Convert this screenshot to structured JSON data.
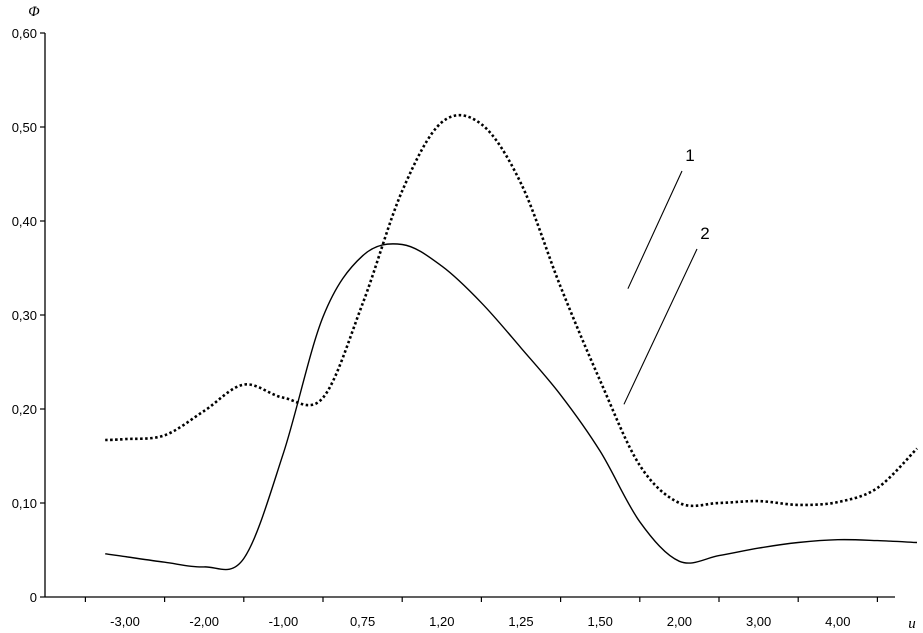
{
  "chart_data": {
    "type": "line",
    "title": "",
    "ylabel": "Φ",
    "xlabel": "u",
    "ylim": [
      0,
      0.6
    ],
    "yticks": [
      "0",
      "0,10",
      "0,20",
      "0,30",
      "0,40",
      "0,50",
      "0,60"
    ],
    "categories": [
      "-3,00",
      "-2,00",
      "-1,00",
      "0,75",
      "1,20",
      "1,25",
      "1,50",
      "2,00",
      "3,00",
      "4,00"
    ],
    "grid": false,
    "legend": "none",
    "annotations": [
      {
        "label": "1",
        "series": 0,
        "at_x": 6.35,
        "at_value": 0.328
      },
      {
        "label": "2",
        "series": 1,
        "at_x": 6.3,
        "at_value": 0.205
      }
    ],
    "series": [
      {
        "style": "dotted",
        "x": [
          -0.25,
          0.0,
          0.5,
          1.0,
          1.5,
          2.0,
          2.5,
          3.0,
          3.5,
          4.0,
          4.5,
          5.0,
          5.5,
          6.0,
          6.5,
          7.0,
          7.5,
          8.0,
          8.5,
          9.0,
          9.5,
          10.0
        ],
        "values": [
          0.167,
          0.168,
          0.172,
          0.198,
          0.226,
          0.212,
          0.212,
          0.312,
          0.432,
          0.505,
          0.503,
          0.44,
          0.33,
          0.23,
          0.14,
          0.1,
          0.1,
          0.102,
          0.098,
          0.101,
          0.116,
          0.158
        ]
      },
      {
        "style": "solid",
        "x": [
          -0.25,
          0.0,
          0.5,
          1.0,
          1.5,
          2.0,
          2.5,
          3.0,
          3.5,
          4.0,
          4.5,
          5.0,
          5.5,
          6.0,
          6.5,
          7.0,
          7.5,
          8.0,
          8.5,
          9.0,
          9.5,
          10.0
        ],
        "values": [
          0.046,
          0.043,
          0.037,
          0.032,
          0.041,
          0.153,
          0.298,
          0.363,
          0.375,
          0.352,
          0.313,
          0.265,
          0.215,
          0.155,
          0.08,
          0.038,
          0.044,
          0.052,
          0.058,
          0.061,
          0.06,
          0.058
        ]
      }
    ]
  }
}
